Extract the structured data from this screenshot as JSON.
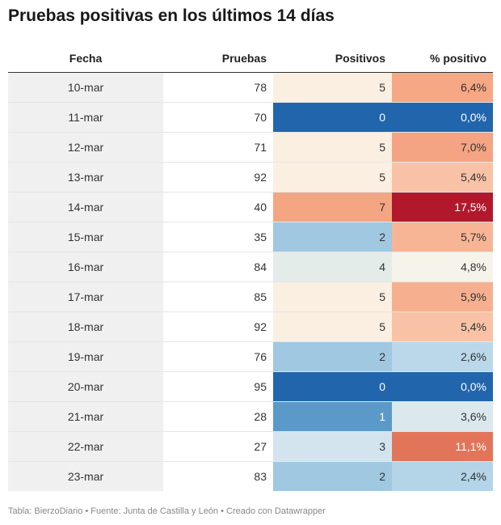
{
  "title": "Pruebas positivas en los últimos 14 días",
  "footer": "Tabla: BierzoDiario • Fuente: Junta de Castilla y León • Creado con Datawrapper",
  "chart_data": {
    "type": "table",
    "columns": [
      "Fecha",
      "Pruebas",
      "Positivos",
      "% positivo"
    ],
    "rows": [
      {
        "fecha": "10-mar",
        "pruebas": "78",
        "positivos": "5",
        "pct": "6,4%",
        "pos_color": "#fbefe2",
        "pct_color": "#f6a783",
        "pos_dark": false,
        "pct_dark": false
      },
      {
        "fecha": "11-mar",
        "pruebas": "70",
        "positivos": "0",
        "pct": "0,0%",
        "pos_color": "#2166ac",
        "pct_color": "#2166ac",
        "pos_dark": true,
        "pct_dark": true
      },
      {
        "fecha": "12-mar",
        "pruebas": "71",
        "positivos": "5",
        "pct": "7,0%",
        "pos_color": "#fbefe2",
        "pct_color": "#f4a482",
        "pos_dark": false,
        "pct_dark": false
      },
      {
        "fecha": "13-mar",
        "pruebas": "92",
        "positivos": "5",
        "pct": "5,4%",
        "pos_color": "#fbefe2",
        "pct_color": "#f9c2a6",
        "pos_dark": false,
        "pct_dark": false
      },
      {
        "fecha": "14-mar",
        "pruebas": "40",
        "positivos": "7",
        "pct": "17,5%",
        "pos_color": "#f4a582",
        "pct_color": "#b2182b",
        "pos_dark": false,
        "pct_dark": true
      },
      {
        "fecha": "15-mar",
        "pruebas": "35",
        "positivos": "2",
        "pct": "5,7%",
        "pos_color": "#a0c8e1",
        "pct_color": "#f8b595",
        "pos_dark": false,
        "pct_dark": false
      },
      {
        "fecha": "16-mar",
        "pruebas": "84",
        "positivos": "4",
        "pct": "4,8%",
        "pos_color": "#e4ecea",
        "pct_color": "#f6f4ea",
        "pos_dark": false,
        "pct_dark": false
      },
      {
        "fecha": "17-mar",
        "pruebas": "85",
        "positivos": "5",
        "pct": "5,9%",
        "pos_color": "#fbefe2",
        "pct_color": "#f7b08f",
        "pos_dark": false,
        "pct_dark": false
      },
      {
        "fecha": "18-mar",
        "pruebas": "92",
        "positivos": "5",
        "pct": "5,4%",
        "pos_color": "#fbefe2",
        "pct_color": "#f9c2a6",
        "pos_dark": false,
        "pct_dark": false
      },
      {
        "fecha": "19-mar",
        "pruebas": "76",
        "positivos": "2",
        "pct": "2,6%",
        "pos_color": "#a0c8e1",
        "pct_color": "#bad8ea",
        "pos_dark": false,
        "pct_dark": false
      },
      {
        "fecha": "20-mar",
        "pruebas": "95",
        "positivos": "0",
        "pct": "0,0%",
        "pos_color": "#2166ac",
        "pct_color": "#2166ac",
        "pos_dark": true,
        "pct_dark": true
      },
      {
        "fecha": "21-mar",
        "pruebas": "28",
        "positivos": "1",
        "pct": "3,6%",
        "pos_color": "#5b9ac8",
        "pct_color": "#dbe8ee",
        "pos_dark": true,
        "pct_dark": false
      },
      {
        "fecha": "22-mar",
        "pruebas": "27",
        "positivos": "3",
        "pct": "11,1%",
        "pos_color": "#d3e4ef",
        "pct_color": "#e27559",
        "pos_dark": false,
        "pct_dark": true
      },
      {
        "fecha": "23-mar",
        "pruebas": "83",
        "positivos": "2",
        "pct": "2,4%",
        "pos_color": "#a0c8e1",
        "pct_color": "#b4d4e8",
        "pos_dark": false,
        "pct_dark": false
      }
    ]
  }
}
